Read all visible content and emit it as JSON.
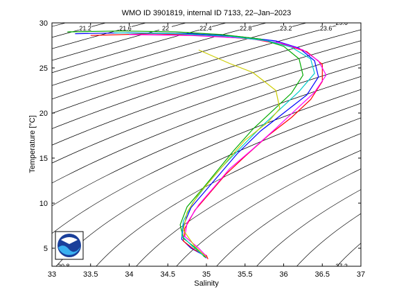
{
  "chart_data": {
    "type": "ts-diagram",
    "title": "WMO ID 3901819, internal ID 7133, 22–Jan–2023",
    "xlabel": "Salinity",
    "ylabel": "Temperature [°C]",
    "xlim": [
      33,
      37
    ],
    "ylim": [
      3,
      30
    ],
    "xticks": [
      33,
      33.5,
      34,
      34.5,
      35,
      35.5,
      36,
      36.5,
      37
    ],
    "yticks": [
      5,
      10,
      15,
      20,
      25,
      30
    ],
    "contours": [
      20.4,
      20.8,
      21.2,
      21.6,
      22,
      22.4,
      22.8,
      23.2,
      23.6,
      24,
      24.4,
      24.8,
      25.2,
      25.6,
      26,
      26.4,
      26.8,
      27.2,
      27.6,
      28,
      28.4,
      28.8,
      29.2,
      29.6
    ],
    "series": [
      {
        "color": "#0000ff",
        "salinity": [
          33.3,
          34.0,
          34.8,
          35.4,
          35.9,
          36.2,
          36.4,
          36.45,
          36.3,
          36.0,
          35.7,
          35.4,
          35.2,
          35.0,
          34.8,
          34.7,
          34.68,
          34.8,
          34.95,
          35.0
        ],
        "temperature": [
          28.8,
          28.9,
          28.8,
          28.5,
          28.0,
          27.2,
          25.8,
          24.0,
          22.0,
          20.0,
          18.0,
          15.5,
          13.5,
          11.5,
          9.5,
          7.5,
          6.0,
          5.0,
          4.3,
          3.9
        ]
      },
      {
        "color": "#ff0000",
        "salinity": [
          33.5,
          34.3,
          35.0,
          35.6,
          36.0,
          36.3,
          36.5,
          36.5,
          36.35,
          36.1,
          35.8,
          35.5,
          35.25,
          35.05,
          34.85,
          34.72,
          34.7,
          34.85,
          35.0,
          35.02
        ],
        "temperature": [
          28.6,
          28.8,
          28.6,
          28.2,
          27.6,
          26.8,
          25.4,
          23.5,
          21.5,
          19.5,
          17.5,
          15.2,
          13.2,
          11.2,
          9.2,
          7.2,
          5.8,
          4.8,
          4.2,
          3.8
        ]
      },
      {
        "color": "#00aa00",
        "salinity": [
          33.2,
          33.9,
          34.6,
          35.2,
          35.7,
          36.0,
          36.2,
          36.25,
          36.1,
          35.85,
          35.6,
          35.35,
          35.15,
          34.95,
          34.75,
          34.66,
          34.7,
          34.85,
          34.98
        ],
        "temperature": [
          29.0,
          29.1,
          29.0,
          28.7,
          28.2,
          27.4,
          26.0,
          24.2,
          22.2,
          20.2,
          18.2,
          15.8,
          13.7,
          11.6,
          9.6,
          7.6,
          6.1,
          5.1,
          4.0
        ]
      },
      {
        "color": "#ff00ff",
        "salinity": [
          34.0,
          34.8,
          35.5,
          35.95,
          36.25,
          36.45,
          36.55,
          36.4,
          36.15,
          35.9,
          35.6,
          35.3,
          35.1,
          34.9,
          34.75,
          34.72,
          34.9,
          35.0
        ],
        "temperature": [
          28.7,
          28.6,
          28.3,
          27.8,
          27.0,
          25.8,
          24.2,
          22.3,
          20.3,
          18.3,
          16.0,
          13.8,
          11.8,
          9.8,
          7.8,
          6.3,
          5.0,
          4.1
        ]
      },
      {
        "color": "#00cccc",
        "salinity": [
          33.8,
          34.6,
          35.3,
          35.8,
          36.1,
          36.35,
          36.4,
          36.2,
          35.95,
          35.7,
          35.45,
          35.2,
          35.0,
          34.82,
          34.7,
          34.68,
          34.82,
          34.96
        ],
        "temperature": [
          28.9,
          28.8,
          28.5,
          28.0,
          27.3,
          26.0,
          24.4,
          22.4,
          20.4,
          18.4,
          16.2,
          14.0,
          12.0,
          10.0,
          8.0,
          6.4,
          5.2,
          4.2
        ]
      },
      {
        "color": "#cccc00",
        "salinity": [
          34.9,
          35.3,
          35.6,
          35.9,
          35.95,
          35.8,
          35.5,
          35.3,
          35.1,
          34.9,
          34.75,
          34.7,
          34.85,
          35.0
        ],
        "temperature": [
          27.0,
          25.5,
          24.5,
          22.5,
          20.5,
          19.0,
          17.0,
          15.0,
          13.0,
          11.0,
          9.0,
          7.0,
          5.2,
          4.0
        ]
      }
    ]
  }
}
